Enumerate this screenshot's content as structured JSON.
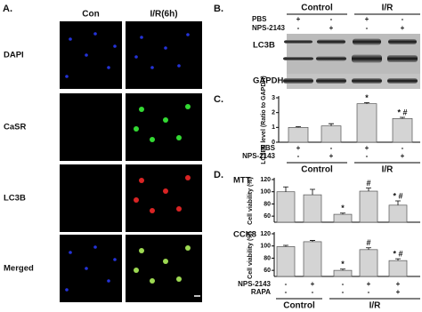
{
  "panel_a": {
    "label": "A.",
    "columns": [
      "Con",
      "I/R(6h)"
    ],
    "rows": [
      "DAPI",
      "CaSR",
      "LC3B",
      "Merged"
    ]
  },
  "panel_b": {
    "label": "B.",
    "groups": [
      "Control",
      "I/R"
    ],
    "conditions": [
      {
        "name": "PBS",
        "signs": [
          "+",
          "-",
          "+",
          "-"
        ]
      },
      {
        "name": "NPS-2143",
        "signs": [
          "-",
          "+",
          "-",
          "+"
        ]
      }
    ],
    "bands": [
      "LC3B",
      "GAPDH"
    ]
  },
  "chart_data": [
    {
      "type": "bar",
      "panel": "C.",
      "y_label": "LC3BII level (Ratio to GAPDH)",
      "values": [
        1.0,
        1.1,
        2.6,
        1.6
      ],
      "errors": [
        0.05,
        0.15,
        0.07,
        0.08
      ],
      "annotations": [
        null,
        null,
        "*",
        "* #"
      ],
      "color": "#d4d4d4",
      "ylim": [
        0,
        3
      ],
      "yticks": [
        0,
        1,
        2,
        3
      ],
      "conditions": [
        {
          "name": "PBS",
          "signs": [
            "+",
            "-",
            "+",
            "-"
          ]
        },
        {
          "name": "NPS-2143",
          "signs": [
            "-",
            "+",
            "-",
            "+"
          ]
        }
      ],
      "groups": [
        "Control",
        "I/R"
      ]
    },
    {
      "type": "bar",
      "panel": "D.",
      "title": "MTT",
      "y_label": "Cell viability (%)",
      "values": [
        100,
        95,
        63,
        101,
        78
      ],
      "errors": [
        8,
        9,
        2,
        5,
        7
      ],
      "annotations": [
        null,
        null,
        "*",
        "#",
        "* #"
      ],
      "color": "#d4d4d4",
      "ylim": [
        50,
        120
      ],
      "yticks": [
        60,
        80,
        100,
        120
      ]
    },
    {
      "type": "bar",
      "title": "CCK8",
      "y_label": "Cell viability (%)",
      "values": [
        99,
        107,
        60,
        94,
        76
      ],
      "errors": [
        2,
        2,
        2,
        3,
        3
      ],
      "annotations": [
        null,
        null,
        "*",
        "#",
        "* #"
      ],
      "color": "#d4d4d4",
      "ylim": [
        50,
        120
      ],
      "yticks": [
        60,
        80,
        100,
        120
      ],
      "conditions": [
        {
          "name": "NPS-2143",
          "signs": [
            "-",
            "+",
            "-",
            "+",
            "+"
          ]
        },
        {
          "name": "RAPA",
          "signs": [
            "-",
            "-",
            "-",
            "-",
            "+"
          ]
        }
      ],
      "groups": [
        "Control",
        "I/R"
      ]
    }
  ]
}
